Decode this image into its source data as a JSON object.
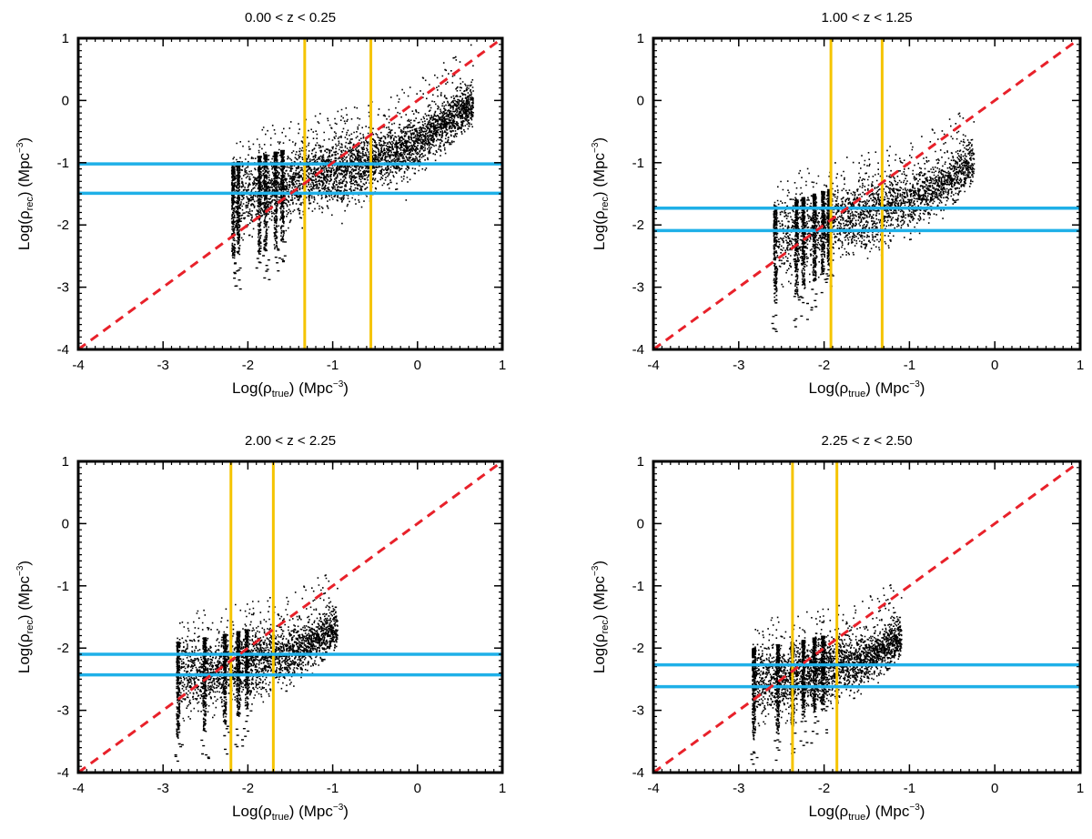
{
  "chart_data": [
    {
      "type": "scatter",
      "title": "0.00 < z < 0.25",
      "xlabel": {
        "pre": "Log(ρ",
        "sub": "true",
        "mid": ") (Mpc",
        "sup": "−3",
        "post": ")"
      },
      "ylabel": {
        "pre": "Log(ρ",
        "sub": "rec",
        "mid": ") (Mpc",
        "sup": "−3",
        "post": ")"
      },
      "xlim": [
        -4,
        1
      ],
      "ylim": [
        -4,
        1
      ],
      "xticks": [
        "-4",
        "-3",
        "-2",
        "-1",
        "0",
        "1"
      ],
      "yticks": [
        "-4",
        "-3",
        "-2",
        "-1",
        "0",
        "1"
      ],
      "identity_line": {
        "from": [
          -4,
          -4
        ],
        "to": [
          1,
          1
        ],
        "color": "#e8212a",
        "style": "dashed"
      },
      "vertical_lines": {
        "x": [
          -1.33,
          -0.55
        ],
        "color": "#f5c400"
      },
      "horizontal_lines": {
        "y": [
          -1.02,
          -1.49
        ],
        "color": "#1fb0e8"
      },
      "columns_x": [
        -2.18,
        -2.12,
        -1.87,
        -1.8,
        -1.68,
        -1.6
      ],
      "point_cloud": {
        "x_range": [
          -2.2,
          0.65
        ],
        "ridge": [
          [
            -2.2,
            -1.55
          ],
          [
            -1.33,
            -1.25
          ],
          [
            -0.55,
            -1.0
          ],
          [
            0.0,
            -0.65
          ],
          [
            0.65,
            -0.05
          ]
        ],
        "spread": 0.28,
        "outlier_low": -2.85
      }
    },
    {
      "type": "scatter",
      "title": "1.00 < z < 1.25",
      "xlabel": {
        "pre": "Log(ρ",
        "sub": "true",
        "mid": ") (Mpc",
        "sup": "−3",
        "post": ")"
      },
      "ylabel": {
        "pre": "Log(ρ",
        "sub": "rec",
        "mid": ") (Mpc",
        "sup": "−3",
        "post": ")"
      },
      "xlim": [
        -4,
        1
      ],
      "ylim": [
        -4,
        1
      ],
      "xticks": [
        "-4",
        "-3",
        "-2",
        "-1",
        "0",
        "1"
      ],
      "yticks": [
        "-4",
        "-3",
        "-2",
        "-1",
        "0",
        "1"
      ],
      "identity_line": {
        "from": [
          -4,
          -4
        ],
        "to": [
          1,
          1
        ],
        "color": "#e8212a",
        "style": "dashed"
      },
      "vertical_lines": {
        "x": [
          -1.92,
          -1.32
        ],
        "color": "#f5c400"
      },
      "horizontal_lines": {
        "y": [
          -1.73,
          -2.09
        ],
        "color": "#1fb0e8"
      },
      "columns_x": [
        -2.58,
        -2.33,
        -2.25,
        -2.12,
        -2.02,
        -1.95
      ],
      "point_cloud": {
        "x_range": [
          -2.6,
          -0.25
        ],
        "ridge": [
          [
            -2.6,
            -2.25
          ],
          [
            -1.9,
            -1.95
          ],
          [
            -1.3,
            -1.75
          ],
          [
            -0.6,
            -1.35
          ],
          [
            -0.25,
            -0.95
          ]
        ],
        "spread": 0.3,
        "outlier_low": -3.25
      }
    },
    {
      "type": "scatter",
      "title": "2.00 < z < 2.25",
      "xlabel": {
        "pre": "Log(ρ",
        "sub": "true",
        "mid": ") (Mpc",
        "sup": "−3",
        "post": ")"
      },
      "ylabel": {
        "pre": "Log(ρ",
        "sub": "rec",
        "mid": ") (Mpc",
        "sup": "−3",
        "post": ")"
      },
      "xlim": [
        -4,
        1
      ],
      "ylim": [
        -4,
        1
      ],
      "xticks": [
        "-4",
        "-3",
        "-2",
        "-1",
        "0",
        "1"
      ],
      "yticks": [
        "-4",
        "-3",
        "-2",
        "-1",
        "0",
        "1"
      ],
      "identity_line": {
        "from": [
          -4,
          -4
        ],
        "to": [
          1,
          1
        ],
        "color": "#e8212a",
        "style": "dashed"
      },
      "vertical_lines": {
        "x": [
          -2.2,
          -1.7
        ],
        "color": "#f5c400"
      },
      "horizontal_lines": {
        "y": [
          -2.1,
          -2.43
        ],
        "color": "#1fb0e8"
      },
      "columns_x": [
        -2.83,
        -2.52,
        -2.28,
        -2.12,
        -2.02
      ],
      "point_cloud": {
        "x_range": [
          -2.85,
          -0.95
        ],
        "ridge": [
          [
            -2.85,
            -2.45
          ],
          [
            -2.2,
            -2.3
          ],
          [
            -1.7,
            -2.15
          ],
          [
            -1.3,
            -1.95
          ],
          [
            -0.95,
            -1.65
          ]
        ],
        "spread": 0.28,
        "outlier_low": -3.45
      }
    },
    {
      "type": "scatter",
      "title": "2.25 < z < 2.50",
      "xlabel": {
        "pre": "Log(ρ",
        "sub": "true",
        "mid": ") (Mpc",
        "sup": "−3",
        "post": ")"
      },
      "ylabel": {
        "pre": "Log(ρ",
        "sub": "rec",
        "mid": ") (Mpc",
        "sup": "−3",
        "post": ")"
      },
      "xlim": [
        -4,
        1
      ],
      "ylim": [
        -4,
        1
      ],
      "xticks": [
        "-4",
        "-3",
        "-2",
        "-1",
        "0",
        "1"
      ],
      "yticks": [
        "-4",
        "-3",
        "-2",
        "-1",
        "0",
        "1"
      ],
      "identity_line": {
        "from": [
          -4,
          -4
        ],
        "to": [
          1,
          1
        ],
        "color": "#e8212a",
        "style": "dashed"
      },
      "vertical_lines": {
        "x": [
          -2.37,
          -1.85
        ],
        "color": "#f5c400"
      },
      "horizontal_lines": {
        "y": [
          -2.27,
          -2.62
        ],
        "color": "#1fb0e8"
      },
      "columns_x": [
        -2.83,
        -2.55,
        -2.38,
        -2.25,
        -2.12,
        -2.02
      ],
      "point_cloud": {
        "x_range": [
          -2.85,
          -1.1
        ],
        "ridge": [
          [
            -2.85,
            -2.55
          ],
          [
            -2.37,
            -2.45
          ],
          [
            -1.85,
            -2.3
          ],
          [
            -1.4,
            -2.1
          ],
          [
            -1.1,
            -1.8
          ]
        ],
        "spread": 0.27,
        "outlier_low": -3.5
      }
    }
  ]
}
